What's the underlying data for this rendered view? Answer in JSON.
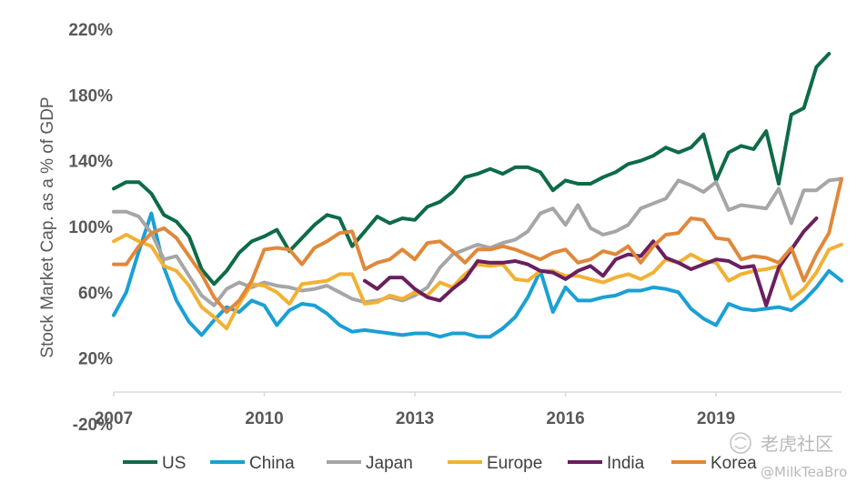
{
  "chart_data": {
    "type": "line",
    "title": "",
    "xlabel": "",
    "ylabel": "Stock Market Cap. as a % of GDP",
    "ylim": [
      -20,
      220
    ],
    "xlim": [
      2007,
      2021.5
    ],
    "yticks": [
      -20,
      20,
      60,
      100,
      140,
      180,
      220
    ],
    "ytick_labels": [
      "-20%",
      "20%",
      "60%",
      "100%",
      "140%",
      "180%",
      "220%"
    ],
    "xticks": [
      2007,
      2010,
      2013,
      2016,
      2019
    ],
    "xtick_labels": [
      "2007",
      "2010",
      "2013",
      "2016",
      "2019"
    ],
    "grid": false,
    "legend_position": "bottom",
    "series": [
      {
        "name": "US",
        "color": "#0e6b48",
        "x_start": 2007,
        "x_step": 0.25,
        "values": [
          123,
          127,
          127,
          120,
          107,
          103,
          94,
          74,
          65,
          73,
          84,
          91,
          94,
          98,
          85,
          93,
          101,
          107,
          105,
          88,
          97,
          106,
          102,
          105,
          104,
          112,
          115,
          121,
          130,
          132,
          135,
          132,
          136,
          136,
          133,
          122,
          128,
          126,
          126,
          130,
          133,
          138,
          140,
          143,
          148,
          145,
          148,
          156,
          128,
          145,
          149,
          147,
          158,
          126,
          168,
          172,
          197,
          205
        ]
      },
      {
        "name": "China",
        "color": "#1aa0d4",
        "x_start": 2007,
        "x_step": 0.25,
        "values": [
          46,
          60,
          85,
          108,
          75,
          55,
          42,
          34,
          43,
          51,
          48,
          55,
          52,
          40,
          49,
          53,
          52,
          47,
          40,
          36,
          37,
          36,
          35,
          34,
          35,
          35,
          33,
          35,
          35,
          33,
          33,
          38,
          45,
          57,
          73,
          48,
          63,
          55,
          55,
          57,
          58,
          61,
          61,
          63,
          62,
          60,
          50,
          44,
          40,
          53,
          50,
          49,
          50,
          51,
          49,
          55,
          63,
          73,
          67
        ]
      },
      {
        "name": "Japan",
        "color": "#a6a6a6",
        "x_start": 2007,
        "x_step": 0.25,
        "values": [
          109,
          109,
          106,
          96,
          80,
          82,
          70,
          58,
          52,
          62,
          66,
          63,
          66,
          64,
          63,
          61,
          62,
          64,
          60,
          56,
          54,
          55,
          57,
          55,
          58,
          63,
          75,
          83,
          86,
          89,
          87,
          90,
          92,
          97,
          108,
          111,
          101,
          113,
          99,
          95,
          97,
          101,
          111,
          114,
          117,
          128,
          125,
          121,
          127,
          110,
          113,
          112,
          111,
          123,
          102,
          122,
          122,
          128,
          129
        ]
      },
      {
        "name": "Europe",
        "color": "#f2b134",
        "x_start": 2007,
        "x_step": 0.25,
        "values": [
          91,
          95,
          91,
          88,
          76,
          73,
          64,
          51,
          45,
          38,
          53,
          65,
          64,
          60,
          53,
          65,
          66,
          67,
          71,
          71,
          53,
          54,
          58,
          56,
          60,
          58,
          66,
          63,
          71,
          77,
          76,
          77,
          68,
          67,
          73,
          73,
          70,
          70,
          68,
          66,
          69,
          71,
          68,
          72,
          80,
          78,
          83,
          79,
          78,
          67,
          71,
          73,
          74,
          76,
          56,
          62,
          72,
          86,
          89
        ]
      },
      {
        "name": "India",
        "color": "#6a1f5f",
        "x_start": 2012,
        "x_step": 0.25,
        "values": [
          67,
          62,
          69,
          69,
          62,
          57,
          55,
          62,
          68,
          79,
          78,
          78,
          79,
          77,
          73,
          72,
          68,
          73,
          76,
          70,
          80,
          83,
          82,
          91,
          81,
          78,
          74,
          77,
          80,
          79,
          75,
          76,
          52,
          75,
          86,
          97,
          105
        ]
      },
      {
        "name": "Korea",
        "color": "#e0883a",
        "x_start": 2007,
        "x_step": 0.25,
        "values": [
          77,
          77,
          88,
          96,
          99,
          93,
          82,
          71,
          57,
          48,
          55,
          67,
          86,
          87,
          86,
          77,
          87,
          91,
          96,
          97,
          74,
          78,
          80,
          86,
          80,
          90,
          91,
          85,
          78,
          86,
          86,
          88,
          86,
          83,
          80,
          84,
          86,
          78,
          80,
          85,
          83,
          88,
          78,
          88,
          95,
          96,
          105,
          104,
          93,
          92,
          80,
          82,
          81,
          78,
          87,
          67,
          83,
          96,
          129
        ]
      }
    ]
  },
  "watermark": {
    "site": "老虎社区",
    "user": "@MilkTeaBro"
  }
}
